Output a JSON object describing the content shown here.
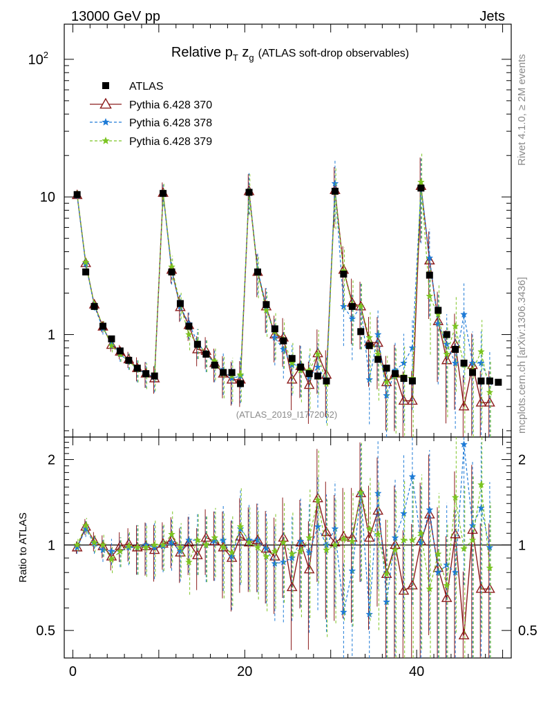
{
  "header": {
    "energy_label": "13000 GeV pp",
    "process_label": "Jets"
  },
  "side_labels": {
    "rivet_label": "Rivet 4.1.0, ≥ 2M events",
    "mcplots_label": "mcplots.cern.ch [arXiv:1306.3436]"
  },
  "chart_data": {
    "type": "scatter",
    "title_prefix": "Relative p",
    "title_sub": "T",
    "title_z": " z",
    "title_zsub": "g",
    "title_suffix": "(ATLAS soft-drop observables)",
    "analysis_label": "(ATLAS_2019_I1772062)",
    "ratio_ylabel": "Ratio to ATLAS",
    "main_yscale": "log",
    "main_ylim": [
      0.18,
      180
    ],
    "main_yticks": [
      {
        "v": 1,
        "label": "1"
      },
      {
        "v": 10,
        "label": "10"
      },
      {
        "v": 100,
        "label": "10",
        "sup": "2"
      }
    ],
    "ratio_ylim": [
      0.4,
      2.4
    ],
    "ratio_yticks": [
      {
        "v": 0.5,
        "label": "0.5"
      },
      {
        "v": 1,
        "label": "1"
      },
      {
        "v": 2,
        "label": "2"
      }
    ],
    "xlim": [
      -1,
      51
    ],
    "xticks": [
      0,
      20,
      40
    ],
    "x": [
      0.5,
      1.5,
      2.5,
      3.5,
      4.5,
      5.5,
      6.5,
      7.5,
      8.5,
      9.5,
      10.5,
      11.5,
      12.5,
      13.5,
      14.5,
      15.5,
      16.5,
      17.5,
      18.5,
      19.5,
      20.5,
      21.5,
      22.5,
      23.5,
      24.5,
      25.5,
      26.5,
      27.5,
      28.5,
      29.5,
      30.5,
      31.5,
      32.5,
      33.5,
      34.5,
      35.5,
      36.5,
      37.5,
      38.5,
      39.5,
      40.5,
      41.5,
      42.5,
      43.5,
      44.5,
      45.5,
      46.5,
      47.5,
      48.5,
      49.5
    ],
    "legend": [
      {
        "name": "ATLAS",
        "style": "data"
      },
      {
        "name": "Pythia 6.428 370",
        "style": "triangle"
      },
      {
        "name": "Pythia 6.428 378",
        "style": "star-blue"
      },
      {
        "name": "Pythia 6.428 379",
        "style": "star-green"
      }
    ],
    "data": {
      "name": "ATLAS",
      "values": [
        10.4,
        2.85,
        1.6,
        1.15,
        0.93,
        0.76,
        0.65,
        0.57,
        0.52,
        0.5,
        10.6,
        2.85,
        1.68,
        1.15,
        0.85,
        0.72,
        0.6,
        0.53,
        0.53,
        0.44,
        10.8,
        2.85,
        1.65,
        1.1,
        0.9,
        0.67,
        0.58,
        0.52,
        0.5,
        0.46,
        11.0,
        2.75,
        1.6,
        1.05,
        0.83,
        0.66,
        0.57,
        0.52,
        0.48,
        0.46,
        11.6,
        2.7,
        1.5,
        1.0,
        0.78,
        0.62,
        0.53,
        0.46,
        0.46,
        0.45
      ]
    },
    "series": [
      {
        "name": "Pythia 6.428 370",
        "color": "#8b1a1a",
        "values": [
          10.3,
          3.3,
          1.65,
          1.14,
          0.84,
          0.75,
          0.66,
          0.57,
          0.52,
          0.48,
          10.7,
          2.95,
          1.58,
          1.17,
          0.78,
          0.76,
          0.62,
          0.52,
          0.47,
          0.47,
          11.0,
          2.85,
          1.6,
          1.0,
          0.95,
          0.47,
          0.59,
          0.43,
          0.73,
          0.51,
          11.2,
          2.95,
          1.7,
          1.6,
          0.88,
          0.87,
          0.45,
          0.52,
          0.33,
          0.33,
          12.0,
          3.45,
          1.25,
          0.65,
          0.85,
          0.3,
          0.6,
          0.32,
          0.32,
          null
        ],
        "ratio": [
          0.98,
          1.16,
          1.03,
          0.99,
          0.91,
          0.99,
          1.01,
          0.98,
          0.99,
          0.96,
          1.01,
          1.04,
          0.94,
          1.02,
          0.92,
          1.06,
          1.03,
          0.98,
          0.9,
          1.07,
          1.02,
          1.04,
          0.97,
          0.91,
          1.06,
          0.71,
          1.02,
          0.82,
          1.46,
          1.11,
          1.02,
          1.07,
          1.06,
          1.52,
          1.06,
          1.32,
          0.79,
          1.0,
          0.69,
          0.72,
          1.03,
          1.28,
          0.83,
          0.65,
          1.09,
          0.48,
          1.13,
          0.7,
          0.7,
          null
        ]
      },
      {
        "name": "Pythia 6.428 378",
        "color": "#1d7ad6",
        "values": [
          10.2,
          3.25,
          1.62,
          1.1,
          0.88,
          0.72,
          0.64,
          0.56,
          0.52,
          0.49,
          10.5,
          2.9,
          1.6,
          1.2,
          0.88,
          0.72,
          0.62,
          0.55,
          0.48,
          0.5,
          11.2,
          2.95,
          1.6,
          0.95,
          0.78,
          0.6,
          0.6,
          0.49,
          0.58,
          0.46,
          12.5,
          1.6,
          1.3,
          1.6,
          0.47,
          1.0,
          0.36,
          0.55,
          0.62,
          0.8,
          11.8,
          3.6,
          1.2,
          0.85,
          0.62,
          1.4,
          0.62,
          0.62,
          0.45,
          null
        ],
        "ratio": [
          0.98,
          1.14,
          1.01,
          0.96,
          0.95,
          0.95,
          0.98,
          0.98,
          1.0,
          0.98,
          0.99,
          1.02,
          0.95,
          1.04,
          1.04,
          1.0,
          1.03,
          1.04,
          0.91,
          1.14,
          1.04,
          1.04,
          0.97,
          0.86,
          0.87,
          0.9,
          1.03,
          0.94,
          1.16,
          1.0,
          1.14,
          0.58,
          0.81,
          1.52,
          0.57,
          1.52,
          0.63,
          1.06,
          1.29,
          1.74,
          1.02,
          1.33,
          0.8,
          0.85,
          0.8,
          2.26,
          1.17,
          1.35,
          0.98,
          null
        ]
      },
      {
        "name": "Pythia 6.428 379",
        "color": "#7bc422",
        "values": [
          10.5,
          3.35,
          1.65,
          1.15,
          0.83,
          0.72,
          0.64,
          0.56,
          0.51,
          0.5,
          10.6,
          3.1,
          1.65,
          1.0,
          0.88,
          0.72,
          0.64,
          0.52,
          0.5,
          0.51,
          11.0,
          2.8,
          1.5,
          1.05,
          0.92,
          0.62,
          0.55,
          0.55,
          0.72,
          0.44,
          11.0,
          2.9,
          1.65,
          1.6,
          0.95,
          0.72,
          0.45,
          0.5,
          0.5,
          0.48,
          12.8,
          1.9,
          1.4,
          0.72,
          1.15,
          0.6,
          0.55,
          0.75,
          0.38,
          null
        ],
        "ratio": [
          1.0,
          1.17,
          1.02,
          1.0,
          0.89,
          0.95,
          0.99,
          0.98,
          0.98,
          1.0,
          1.0,
          1.09,
          0.98,
          0.87,
          1.04,
          1.0,
          1.06,
          0.98,
          0.94,
          1.16,
          1.02,
          0.98,
          0.91,
          0.95,
          1.02,
          0.93,
          0.95,
          1.06,
          1.44,
          0.96,
          1.0,
          1.05,
          1.03,
          1.53,
          1.14,
          1.09,
          0.79,
          0.96,
          1.04,
          1.04,
          1.1,
          0.7,
          0.93,
          0.72,
          1.47,
          0.97,
          1.04,
          1.63,
          0.83,
          null
        ]
      }
    ]
  }
}
